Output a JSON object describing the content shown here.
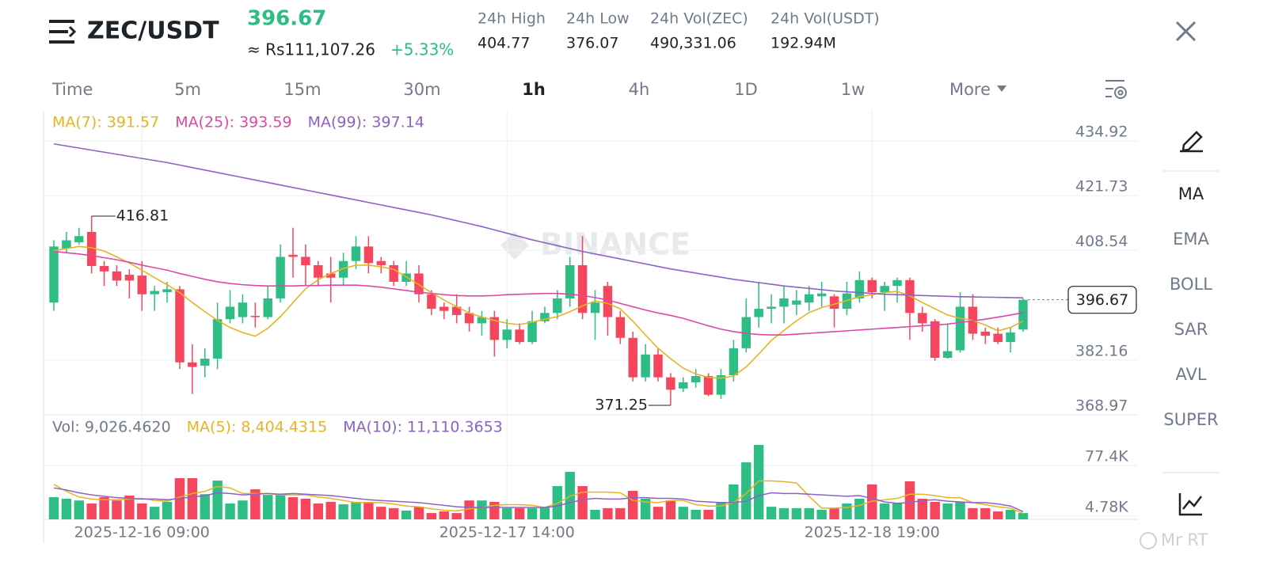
{
  "header": {
    "pair": "ZEC/USDT",
    "last_price": "396.67",
    "fiat_price": "≈ Rs111,107.26",
    "change": "+5.33%",
    "stats": [
      {
        "label": "24h High",
        "value": "404.77"
      },
      {
        "label": "24h Low",
        "value": "376.07"
      },
      {
        "label": "24h Vol(ZEC)",
        "value": "490,331.06"
      },
      {
        "label": "24h Vol(USDT)",
        "value": "192.94M"
      }
    ]
  },
  "intervals": [
    "Time",
    "5m",
    "15m",
    "30m",
    "1h",
    "4h",
    "1D",
    "1w",
    "More"
  ],
  "active_interval": "1h",
  "indicators": [
    "MA",
    "EMA",
    "BOLL",
    "SAR",
    "AVL",
    "SUPER"
  ],
  "active_indicator": "MA",
  "watermark": "Mr RT",
  "chart_data": [
    {
      "type": "candlestick",
      "watermark": "BINANCE",
      "up_color": "#2ebd85",
      "down_color": "#f6465d",
      "grid": true,
      "ylim": [
        368.97,
        442.16
      ],
      "yticks": [
        434.92,
        421.73,
        408.54,
        382.16,
        368.97
      ],
      "categories": [
        null,
        null,
        null,
        null,
        null,
        null,
        null,
        "2025-12-16 09:00",
        null,
        null,
        null,
        null,
        null,
        null,
        null,
        null,
        null,
        null,
        null,
        null,
        null,
        null,
        null,
        null,
        null,
        null,
        null,
        null,
        null,
        null,
        null,
        null,
        null,
        null,
        null,
        null,
        "2025-12-17 14:00",
        null,
        null,
        null,
        null,
        null,
        null,
        null,
        null,
        null,
        null,
        null,
        null,
        null,
        null,
        null,
        null,
        null,
        null,
        null,
        null,
        null,
        null,
        null,
        null,
        null,
        null,
        null,
        null,
        "2025-12-18 19:00",
        null,
        null,
        null,
        null,
        null,
        null,
        null,
        null,
        null,
        null,
        null,
        null
      ],
      "open": [
        396,
        409,
        410.5,
        413,
        404.8,
        403.5,
        402.7,
        402.5,
        398,
        398.5,
        399.2,
        381.6,
        380.8,
        382.5,
        392,
        392.5,
        392.8,
        392.5,
        397,
        407.5,
        407,
        405,
        403,
        402,
        406,
        409.5,
        406,
        405,
        401,
        403,
        398,
        395,
        395,
        393.5,
        391,
        392.5,
        387,
        389.5,
        386.5,
        391.5,
        393.5,
        397,
        405,
        393.5,
        400,
        392.5,
        387.5,
        378,
        383.5,
        378,
        375.3,
        376.8,
        378.3,
        373.8,
        378.5,
        385,
        392.5,
        394.5,
        395,
        395.5,
        396,
        397.5,
        397.5,
        394.5,
        397,
        401.4,
        398.5,
        400,
        401.4,
        393.5,
        391.5,
        382.7,
        384.5,
        395,
        389,
        388.5,
        386.5,
        389.5
      ],
      "high": [
        411,
        413,
        414,
        416.81,
        406,
        405,
        404,
        406,
        400,
        401,
        400,
        386,
        385,
        396,
        399,
        398,
        396,
        400,
        410,
        414,
        410,
        406,
        407,
        408,
        412,
        412,
        407,
        406,
        406,
        405,
        399,
        396,
        398,
        395,
        394,
        394,
        392,
        391,
        394,
        395,
        399,
        407,
        412,
        399,
        401,
        394,
        389,
        386,
        385,
        379,
        378,
        380,
        379,
        380,
        387,
        397,
        401,
        398,
        400,
        399,
        400,
        401,
        398,
        401,
        403.5,
        402,
        401,
        402,
        402,
        395,
        392,
        391,
        398.5,
        398,
        390,
        390,
        390,
        397
      ],
      "low": [
        394,
        408,
        410,
        403,
        400,
        400,
        397,
        394,
        394,
        396,
        380,
        374,
        378,
        380,
        391,
        391,
        390,
        392,
        396,
        402,
        400,
        400,
        396,
        400,
        404,
        403,
        403,
        400,
        400,
        396,
        393,
        392,
        391,
        389,
        388,
        383,
        385,
        386,
        386,
        391,
        392,
        395,
        392,
        387,
        388,
        386,
        377,
        377,
        377,
        371.25,
        374.5,
        375.5,
        373.5,
        372.8,
        377,
        384,
        390,
        391,
        391,
        393,
        394,
        395,
        390,
        393,
        396,
        397,
        394,
        396,
        387,
        389,
        382,
        382.5,
        384,
        387,
        386,
        386,
        384,
        389
      ],
      "close": [
        409.5,
        411,
        412,
        404.8,
        403.5,
        401.3,
        401.3,
        398,
        398.8,
        399.2,
        381.6,
        380.5,
        382.5,
        392,
        395,
        396,
        392.5,
        397,
        407,
        407,
        405,
        402,
        402,
        406,
        409.5,
        405.5,
        405,
        401,
        403,
        398,
        394.5,
        394,
        393,
        391,
        392.5,
        387,
        389.5,
        386.5,
        391.5,
        393.5,
        397,
        405,
        393.5,
        396,
        392.5,
        387.5,
        378,
        383.5,
        378,
        375,
        376.8,
        378.3,
        373.8,
        378.5,
        385,
        392.5,
        394.5,
        395,
        397,
        396.5,
        398,
        398.2,
        394.5,
        398.2,
        401.4,
        398.5,
        400,
        401.4,
        393.5,
        391,
        382.7,
        384.3,
        395,
        388.5,
        388,
        386.5,
        388.8,
        396.67
      ],
      "series": [
        {
          "name": "MA(7): 391.57",
          "color": "#e6b422",
          "values": [
            408.5,
            409.0,
            409.5,
            409.2,
            408.4,
            407.0,
            405.5,
            403.8,
            402.0,
            400.3,
            398.4,
            396.0,
            393.8,
            391.7,
            390.0,
            388.8,
            387.9,
            389.8,
            392.6,
            396.0,
            399.3,
            401.5,
            403.0,
            404.2,
            405.0,
            405.0,
            404.6,
            404.0,
            402.2,
            400.3,
            398.4,
            396.6,
            395.0,
            393.5,
            392.5,
            391.7,
            391.0,
            390.7,
            391.3,
            392.0,
            392.6,
            393.8,
            395.2,
            396.4,
            395.8,
            394.5,
            391.5,
            388.2,
            385.0,
            382.5,
            380.2,
            378.8,
            378.0,
            377.8,
            378.3,
            380.5,
            383.6,
            386.9,
            389.3,
            391.6,
            393.6,
            394.8,
            395.6,
            396.5,
            397.4,
            397.9,
            398.4,
            398.7,
            397.6,
            396.0,
            394.5,
            393.0,
            392.2,
            391.7,
            390.6,
            389.2,
            390.0,
            391.57
          ]
        },
        {
          "name": "MA(25): 393.59",
          "color": "#dc4aa8",
          "values": [
            408.3,
            408.0,
            407.7,
            407.3,
            406.8,
            406.3,
            405.7,
            405.0,
            404.4,
            403.8,
            403.0,
            402.3,
            401.6,
            401.0,
            400.6,
            400.3,
            400.1,
            400.0,
            400.0,
            400.0,
            400.1,
            400.1,
            400.2,
            400.2,
            400.2,
            400.0,
            399.7,
            399.3,
            398.9,
            398.5,
            398.2,
            397.9,
            397.7,
            397.6,
            397.6,
            397.7,
            397.9,
            398.0,
            398.1,
            398.2,
            398.2,
            398.0,
            397.7,
            397.2,
            396.6,
            395.8,
            395.0,
            394.2,
            393.5,
            392.9,
            392.2,
            391.3,
            390.4,
            389.6,
            389.0,
            388.6,
            388.3,
            388.2,
            388.2,
            388.4,
            388.6,
            388.8,
            389.0,
            389.2,
            389.4,
            389.6,
            389.8,
            390.0,
            390.2,
            390.4,
            390.6,
            390.8,
            391.2,
            391.6,
            392.0,
            392.5,
            393.0,
            393.59
          ]
        },
        {
          "name": "MA(99): 397.14",
          "color": "#8e62c2",
          "values": [
            434.2,
            433.7,
            433.2,
            432.7,
            432.2,
            431.7,
            431.2,
            430.7,
            430.2,
            429.7,
            429.1,
            428.5,
            427.9,
            427.3,
            426.7,
            426.1,
            425.5,
            424.9,
            424.3,
            423.7,
            423.1,
            422.5,
            421.9,
            421.3,
            420.7,
            420.1,
            419.5,
            418.9,
            418.3,
            417.7,
            417.1,
            416.4,
            415.7,
            415.0,
            414.3,
            413.5,
            412.7,
            411.9,
            411.1,
            410.4,
            409.7,
            409.0,
            408.3,
            407.7,
            407.1,
            406.5,
            405.9,
            405.3,
            404.7,
            404.1,
            403.6,
            403.1,
            402.6,
            402.1,
            401.6,
            401.2,
            400.8,
            400.4,
            400.0,
            399.7,
            399.4,
            399.1,
            398.8,
            398.6,
            398.4,
            398.2,
            398.0,
            397.9,
            397.8,
            397.7,
            397.6,
            397.5,
            397.4,
            397.35,
            397.3,
            397.25,
            397.2,
            397.14
          ]
        }
      ]
    },
    {
      "type": "bar",
      "label": "Vol: 9,026.4620",
      "ylim": [
        0,
        149700
      ],
      "yticks": [
        {
          "value": 77400,
          "label": "77.4K"
        },
        {
          "value": 4780,
          "label": "4.78K"
        }
      ],
      "values": [
        31700,
        29500,
        27000,
        22700,
        31700,
        27000,
        34000,
        22700,
        18000,
        25000,
        59000,
        59000,
        36000,
        55500,
        22700,
        27000,
        43000,
        35000,
        36000,
        31700,
        29500,
        22700,
        25000,
        21500,
        25000,
        25000,
        18000,
        16000,
        12500,
        18000,
        9000,
        11300,
        9000,
        27000,
        27000,
        25000,
        16000,
        16000,
        16000,
        18000,
        47600,
        68000,
        47600,
        13600,
        16000,
        16000,
        40800,
        29500,
        18000,
        27000,
        18000,
        13600,
        13600,
        25000,
        50000,
        81600,
        106600,
        18000,
        16000,
        16000,
        16000,
        13600,
        16000,
        22700,
        29500,
        50000,
        22700,
        22700,
        54400,
        29500,
        25000,
        22700,
        25000,
        16000,
        16000,
        11300,
        13600,
        9026.462
      ],
      "series": [
        {
          "name": "MA(5): 8,404.4315",
          "color": "#e6b422",
          "values": [
            50000,
            40000,
            32000,
            29000,
            28000,
            28000,
            29000,
            30000,
            27000,
            26000,
            32000,
            37000,
            40000,
            47000,
            45000,
            37000,
            37000,
            37000,
            35000,
            35000,
            35000,
            32000,
            30000,
            27000,
            24000,
            24000,
            24000,
            22000,
            19000,
            18000,
            15000,
            13000,
            12000,
            15000,
            17000,
            20000,
            21000,
            21000,
            20000,
            17000,
            23000,
            33000,
            39000,
            39000,
            39000,
            38000,
            27000,
            25000,
            24000,
            27000,
            27000,
            21000,
            19000,
            19000,
            24000,
            37000,
            55000,
            55000,
            54000,
            52000,
            33000,
            16000,
            16000,
            17000,
            20000,
            26000,
            28000,
            30000,
            36000,
            36000,
            34000,
            31000,
            31000,
            24000,
            21000,
            18000,
            16000,
            8404.4315
          ]
        },
        {
          "name": "MA(10): 11,110.3653",
          "color": "#8e62c2",
          "values": [
            45000,
            42000,
            38000,
            35000,
            33000,
            31000,
            30000,
            29000,
            29000,
            28000,
            30000,
            32000,
            34000,
            38000,
            37000,
            35000,
            36000,
            37000,
            36000,
            37000,
            36000,
            35000,
            34000,
            32000,
            30000,
            28000,
            27000,
            26000,
            25000,
            24000,
            22000,
            20000,
            18000,
            17000,
            17000,
            17000,
            17000,
            17000,
            17000,
            17000,
            19000,
            24000,
            28000,
            30000,
            29000,
            29000,
            31000,
            31000,
            30000,
            30000,
            29000,
            26000,
            25000,
            24000,
            24000,
            26000,
            34000,
            38000,
            37000,
            37000,
            36000,
            35000,
            34000,
            33000,
            34000,
            30000,
            25000,
            23000,
            24000,
            27000,
            28000,
            26000,
            25000,
            24000,
            24000,
            22000,
            19000,
            11110.3653
          ]
        }
      ]
    }
  ]
}
